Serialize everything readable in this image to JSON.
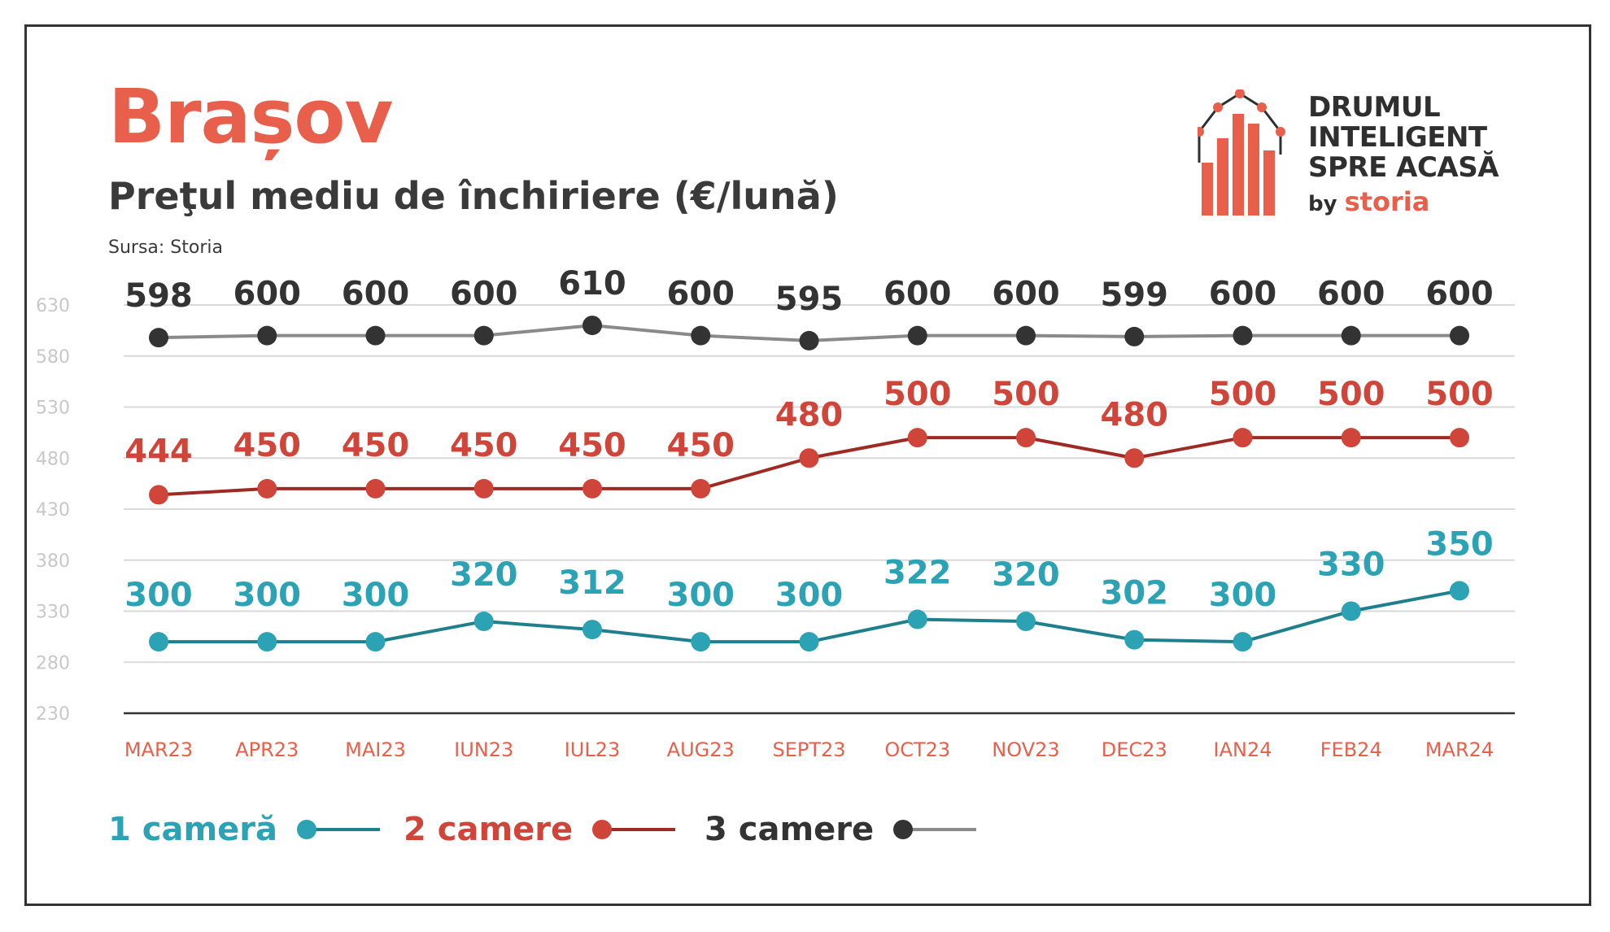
{
  "title": "Brașov",
  "subtitle": "Preţul mediu de închiriere (€/lună)",
  "source": "Sursa: Storia",
  "logo": {
    "lines": [
      "DRUMUL",
      "INTELIGENT",
      "SPRE ACASĂ"
    ],
    "by": "by",
    "brand": "storia"
  },
  "colors": {
    "title": "#e8604c",
    "axis_labels": "#e8604c",
    "grid": "#d9d9d9",
    "ticks": "#c8c8c8"
  },
  "chart_data": {
    "type": "line",
    "categories": [
      "MAR23",
      "APR23",
      "MAI23",
      "IUN23",
      "IUL23",
      "AUG23",
      "SEPT23",
      "OCT23",
      "NOV23",
      "DEC23",
      "IAN24",
      "FEB24",
      "MAR24"
    ],
    "yticks": [
      230,
      280,
      330,
      380,
      430,
      480,
      530,
      580,
      630
    ],
    "ylim": [
      230,
      630
    ],
    "grid": true,
    "legend_position": "bottom-left",
    "series": [
      {
        "name": "1 cameră",
        "color": "#2ba3b5",
        "line_color": "#1f7f8c",
        "values": [
          300,
          300,
          300,
          320,
          312,
          300,
          300,
          322,
          320,
          302,
          300,
          330,
          350
        ]
      },
      {
        "name": "2 camere",
        "color": "#d0453a",
        "line_color": "#9e2a23",
        "values": [
          444,
          450,
          450,
          450,
          450,
          450,
          480,
          500,
          500,
          480,
          500,
          500,
          500
        ]
      },
      {
        "name": "3 camere",
        "color": "#333333",
        "line_color": "#8a8a8a",
        "values": [
          598,
          600,
          600,
          600,
          610,
          600,
          595,
          600,
          600,
          599,
          600,
          600,
          600
        ]
      }
    ]
  }
}
